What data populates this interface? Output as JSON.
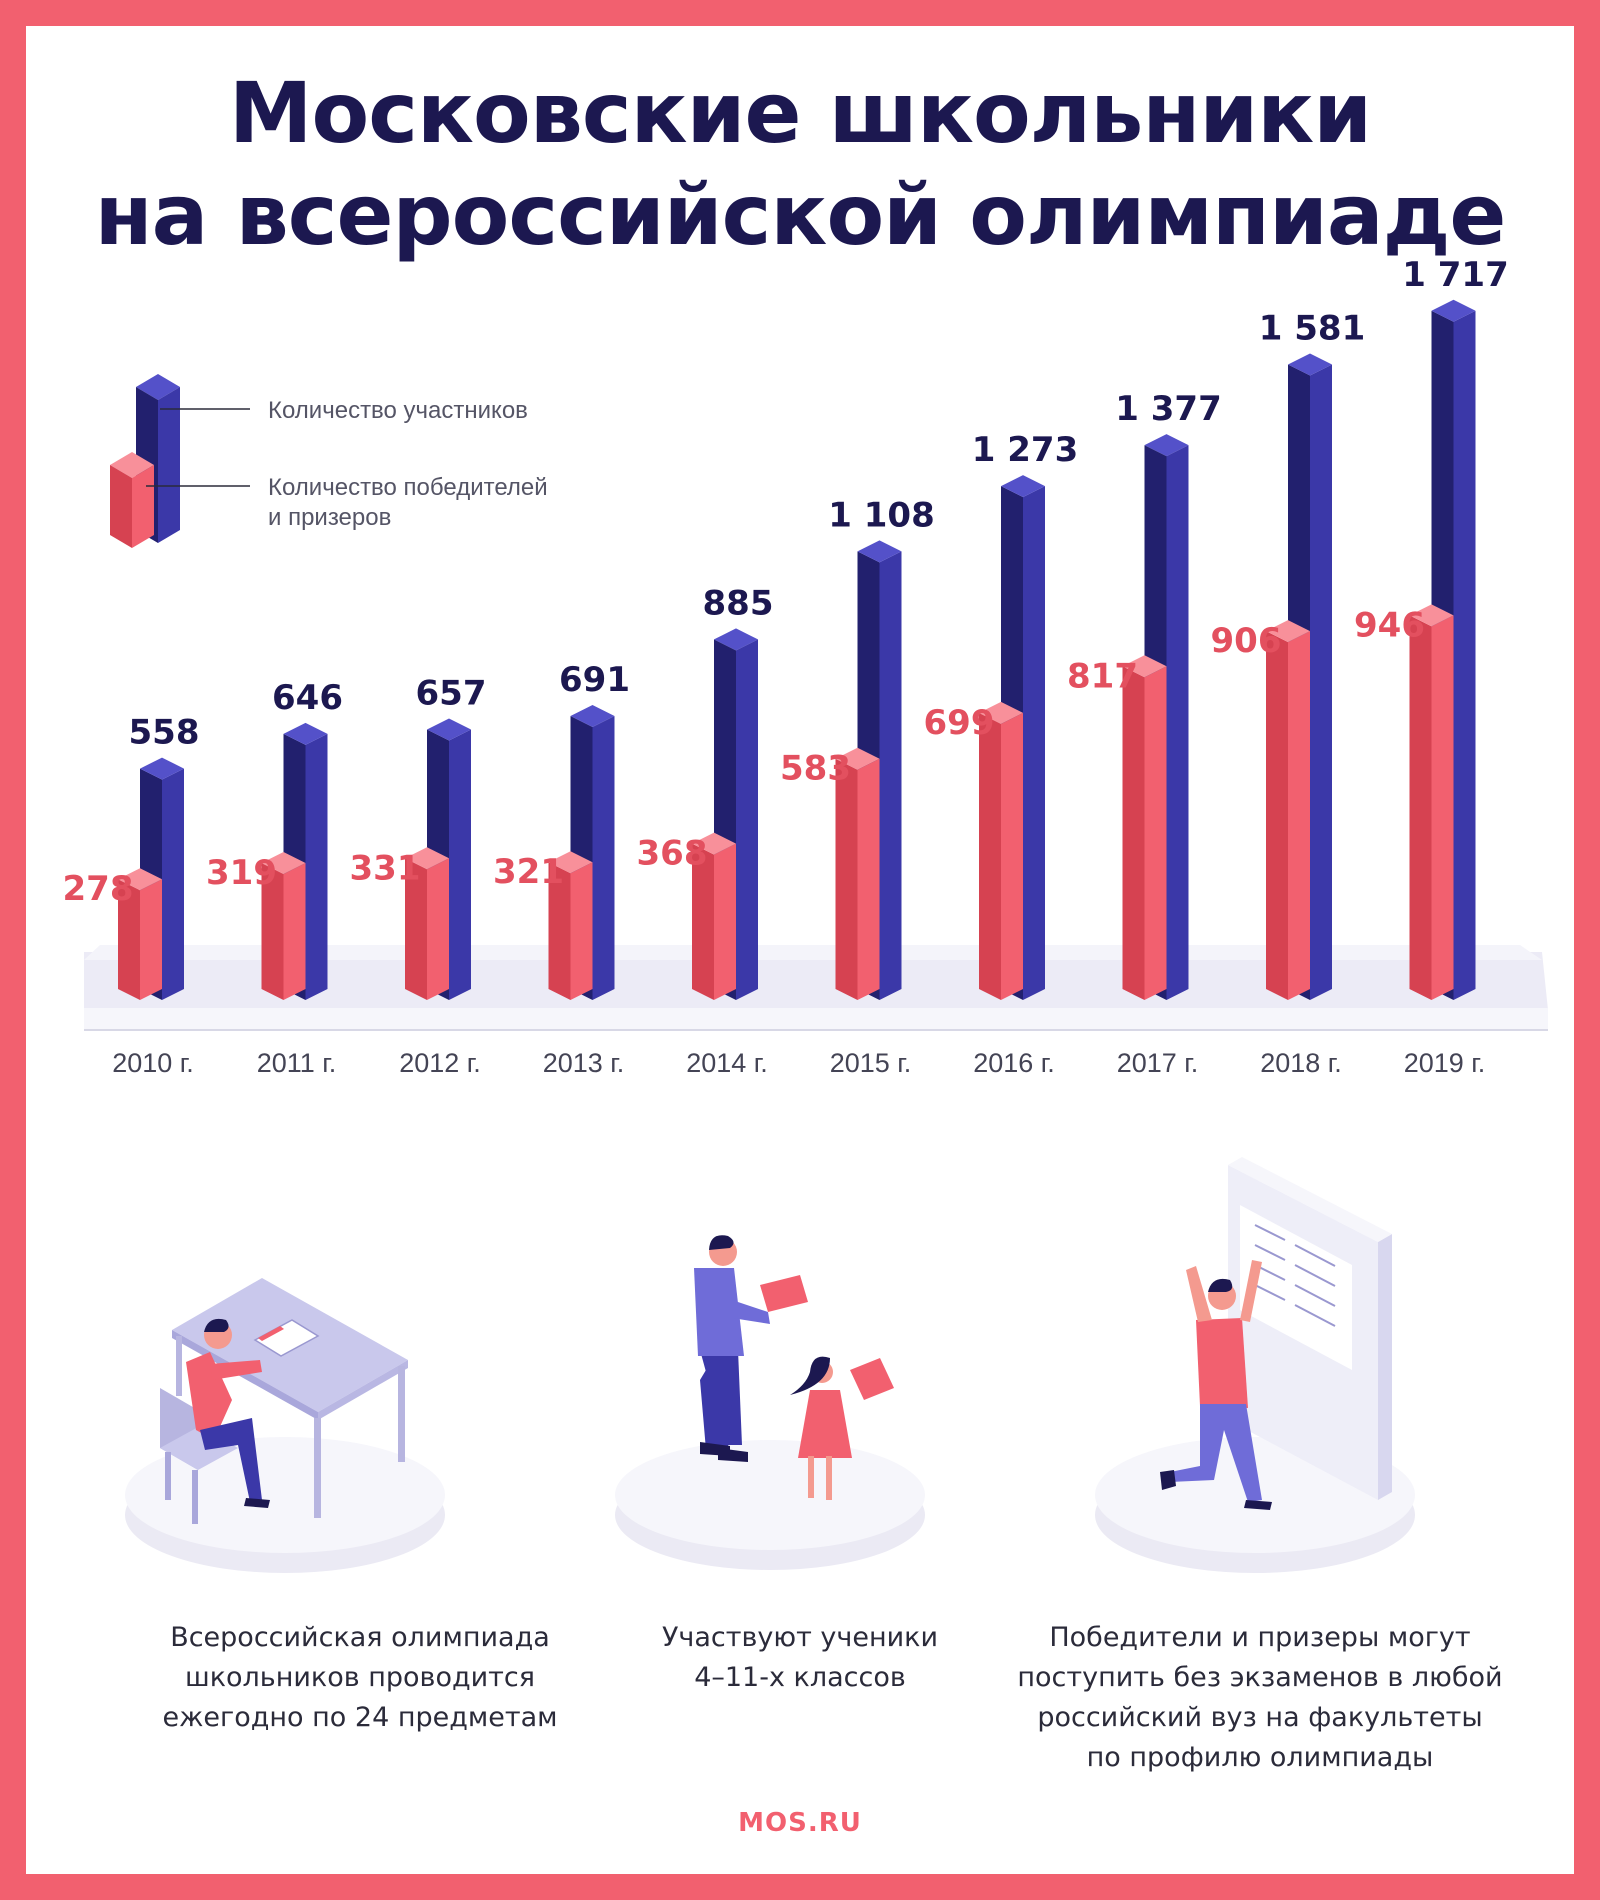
{
  "title": {
    "line1": "Московские школьники",
    "line2": "на всероссийской олимпиаде"
  },
  "colors": {
    "frame": "#f2606f",
    "title": "#1c1850",
    "participants": "#3b38a8",
    "winners": "#f2606f",
    "winners_label": "#e3505f"
  },
  "chart_data": {
    "type": "bar",
    "title": "Московские школьники на всероссийской олимпиаде",
    "categories": [
      "2010 г.",
      "2011 г.",
      "2012 г.",
      "2013 г.",
      "2014 г.",
      "2015 г.",
      "2016 г.",
      "2017 г.",
      "2018 г.",
      "2019 г."
    ],
    "series": [
      {
        "name": "Количество участников",
        "values": [
          558,
          646,
          657,
          691,
          885,
          1108,
          1273,
          1377,
          1581,
          1717
        ],
        "labels": [
          "558",
          "646",
          "657",
          "691",
          "885",
          "1 108",
          "1 273",
          "1 377",
          "1 581",
          "1 717"
        ]
      },
      {
        "name": "Количество победителей и призеров",
        "values": [
          278,
          319,
          331,
          321,
          368,
          583,
          699,
          817,
          906,
          946
        ],
        "labels": [
          "278",
          "319",
          "331",
          "321",
          "368",
          "583",
          "699",
          "817",
          "906",
          "946"
        ]
      }
    ],
    "legend": {
      "participants": "Количество участников",
      "winners_line1": "Количество победителей",
      "winners_line2": "и призеров",
      "position": "top-left"
    },
    "xlabel": "",
    "ylabel": "",
    "ylim": [
      0,
      1800
    ]
  },
  "facts": [
    {
      "lines": [
        "Всероссийская олимпиада",
        "школьников проводится",
        "ежегодно по 24 предметам"
      ]
    },
    {
      "lines": [
        "Участвуют ученики",
        "4–11-х классов"
      ]
    },
    {
      "lines": [
        "Победители и призеры могут",
        "поступить без экзаменов в любой",
        "российский вуз на факультеты",
        "по профилю олимпиады"
      ]
    }
  ],
  "footer": "MOS.RU"
}
